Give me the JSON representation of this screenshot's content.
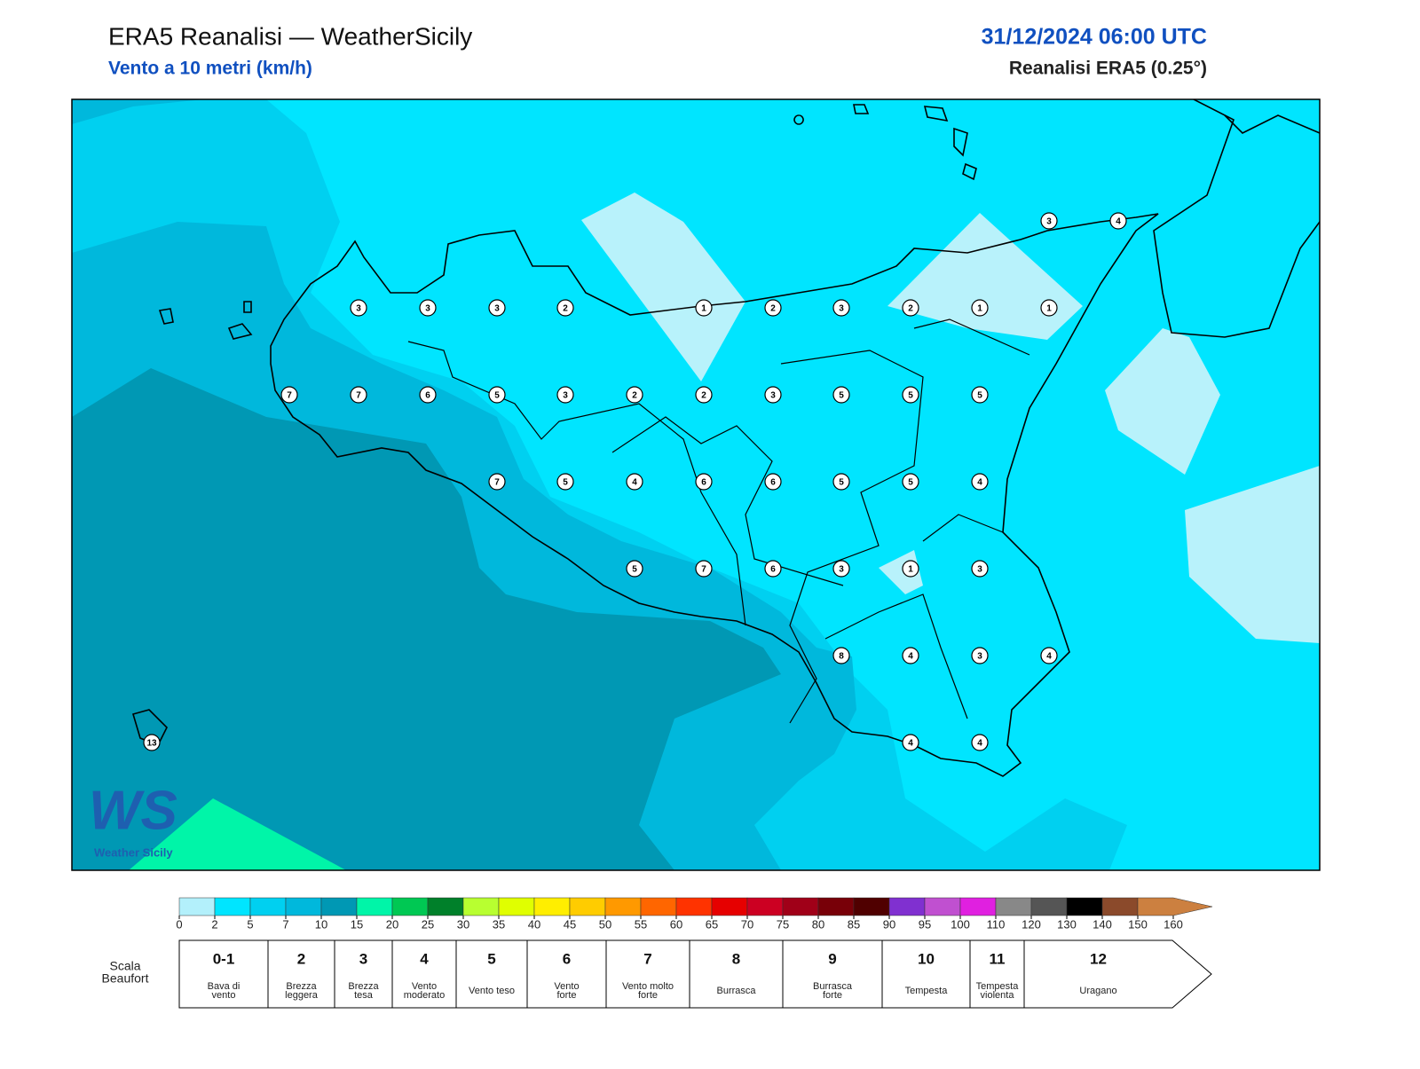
{
  "header": {
    "title": "ERA5 Reanalisi — WeatherSicily",
    "subtitle": "Vento a 10 metri (km/h)",
    "datetime": "31/12/2024 06:00 UTC",
    "source": "Reanalisi ERA5 (0.25°)"
  },
  "logo": {
    "mark": "WS",
    "name": "Weather Sicily"
  },
  "stations": {
    "values": [
      3,
      4,
      3,
      3,
      3,
      2,
      1,
      2,
      3,
      2,
      1,
      1,
      7,
      7,
      6,
      5,
      3,
      2,
      2,
      3,
      5,
      5,
      5,
      7,
      5,
      4,
      6,
      6,
      5,
      5,
      4,
      5,
      7,
      6,
      3,
      1,
      3,
      8,
      4,
      3,
      4,
      4,
      4,
      13
    ]
  },
  "colorbar": {
    "ticks": [
      0,
      2,
      5,
      7,
      10,
      15,
      20,
      25,
      30,
      35,
      40,
      45,
      50,
      55,
      60,
      65,
      70,
      75,
      80,
      85,
      90,
      95,
      100,
      110,
      120,
      130,
      140,
      150,
      160
    ],
    "colors": [
      "#b3f0fb",
      "#00e5ff",
      "#00d0f0",
      "#00b8dc",
      "#0098b4",
      "#00f5a8",
      "#00c853",
      "#00802a",
      "#b8ff30",
      "#e0ff00",
      "#ffee00",
      "#ffcc00",
      "#ff9900",
      "#ff6600",
      "#ff3300",
      "#e60000",
      "#cc0022",
      "#a00018",
      "#780008",
      "#500000",
      "#8030d0",
      "#c050d0",
      "#e020e0",
      "#888888",
      "#555555",
      "#000000",
      "#8b4a2b",
      "#cc8040"
    ]
  },
  "beaufort": {
    "label": [
      "Scala",
      "Beaufort"
    ],
    "classes": [
      {
        "force": "0-1",
        "desc": [
          "Bava di",
          "vento"
        ]
      },
      {
        "force": 2,
        "desc": [
          "Brezza",
          "leggera"
        ]
      },
      {
        "force": 3,
        "desc": [
          "Brezza",
          "tesa"
        ]
      },
      {
        "force": 4,
        "desc": [
          "Vento",
          "moderato"
        ]
      },
      {
        "force": 5,
        "desc": [
          "Vento teso"
        ]
      },
      {
        "force": 6,
        "desc": [
          "Vento",
          "forte"
        ]
      },
      {
        "force": 7,
        "desc": [
          "Vento molto",
          "forte"
        ]
      },
      {
        "force": 8,
        "desc": [
          "Burrasca"
        ]
      },
      {
        "force": 9,
        "desc": [
          "Burrasca",
          "forte"
        ]
      },
      {
        "force": 10,
        "desc": [
          "Tempesta"
        ]
      },
      {
        "force": 11,
        "desc": [
          "Tempesta",
          "violenta"
        ]
      },
      {
        "force": 12,
        "desc": [
          "Uragano"
        ]
      }
    ]
  }
}
